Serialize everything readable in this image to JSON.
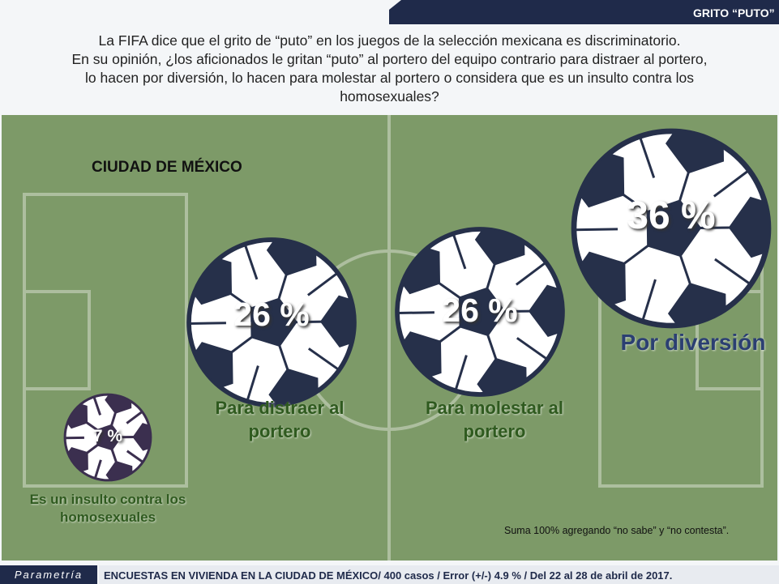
{
  "header": {
    "tag": "GRITO “PUTO”",
    "question": [
      "La FIFA dice que el grito de “puto” en los juegos de la selección mexicana es discriminatorio.",
      "En su opinión, ¿los aficionados le gritan “puto” al portero del equipo contrario para distraer al portero,",
      "lo hacen por diversión, lo hacen para molestar al portero o considera que es un insulto contra los",
      "homosexuales?"
    ]
  },
  "chart_data": {
    "type": "bubble",
    "subtitle": "CIUDAD DE MÉXICO",
    "categories": [
      "Es un insulto contra los homosexuales",
      "Para distraer al portero",
      "Para molestar al portero",
      "Por diversión"
    ],
    "values": [
      7,
      26,
      26,
      36
    ],
    "value_labels": [
      "7 %",
      "26 %",
      "26 %",
      "36 %"
    ],
    "colors": [
      "#3b2f4f",
      "#26304a",
      "#26304a",
      "#26304a"
    ],
    "label_colors": [
      "#2f5a1f",
      "#2f5a1f",
      "#2f5a1f",
      "#2b3f72"
    ],
    "note": "Suma 100%  agregando “no sabe” y “no contesta”."
  },
  "footer": {
    "brand": "Parametría",
    "text": "ENCUESTAS EN VIVIENDA EN LA CIUDAD DE MÉXICO/ 400 casos / Error (+/-) 4.9 % / Del 22 al 28 de abril de 2017."
  }
}
